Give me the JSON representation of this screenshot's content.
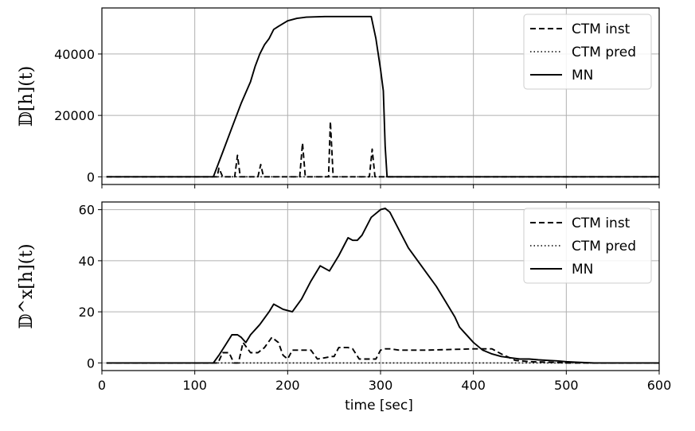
{
  "chart_data": [
    {
      "type": "line",
      "ylabel": "𝔻[h](t)",
      "xlim": [
        0,
        600
      ],
      "ylim": [
        -2500,
        55000
      ],
      "xticks": [
        0,
        100,
        200,
        300,
        400,
        500,
        600
      ],
      "yticks": [
        0,
        20000,
        40000
      ],
      "ytick_labels": [
        "0",
        "20000",
        "40000"
      ],
      "grid": true,
      "legend": {
        "placement": "top-right"
      },
      "series": [
        {
          "name": "CTM inst",
          "style": "dashed",
          "x": [
            5,
            120,
            124,
            126,
            130,
            140,
            143,
            146,
            149,
            152,
            160,
            168,
            171,
            174,
            177,
            180,
            210,
            213,
            216,
            219,
            222,
            240,
            244,
            246,
            249,
            252,
            285,
            288,
            291,
            294,
            297,
            300,
            600
          ],
          "y": [
            0,
            0,
            0,
            2800,
            0,
            0,
            0,
            7000,
            0,
            0,
            0,
            0,
            4000,
            0,
            0,
            0,
            0,
            0,
            11000,
            0,
            0,
            0,
            0,
            18000,
            0,
            0,
            0,
            0,
            9000,
            0,
            0,
            0,
            0
          ]
        },
        {
          "name": "CTM pred",
          "style": "dotted",
          "x": [
            5,
            600
          ],
          "y": [
            0,
            0
          ]
        },
        {
          "name": "MN",
          "style": "solid",
          "x": [
            5,
            117,
            120,
            130,
            140,
            150,
            160,
            165,
            170,
            175,
            180,
            185,
            190,
            200,
            210,
            220,
            240,
            260,
            280,
            290,
            295,
            300,
            303,
            305,
            307,
            600
          ],
          "y": [
            0,
            0,
            0,
            8000,
            16000,
            24000,
            31000,
            36000,
            40000,
            43000,
            45000,
            48000,
            49000,
            50800,
            51600,
            52000,
            52200,
            52200,
            52200,
            52200,
            45000,
            35000,
            28000,
            10000,
            0,
            0
          ]
        }
      ]
    },
    {
      "type": "line",
      "ylabel": "𝔻^x[h](t)",
      "xlabel": "time [sec]",
      "xlim": [
        0,
        600
      ],
      "ylim": [
        -3,
        63
      ],
      "xticks": [
        0,
        100,
        200,
        300,
        400,
        500,
        600
      ],
      "xtick_labels": [
        "0",
        "100",
        "200",
        "300",
        "400",
        "500",
        "600"
      ],
      "yticks": [
        0,
        20,
        40,
        60
      ],
      "ytick_labels": [
        "0",
        "20",
        "40",
        "60"
      ],
      "grid": true,
      "legend": {
        "placement": "top-right"
      },
      "series": [
        {
          "name": "CTM inst",
          "style": "dashed",
          "x": [
            5,
            120,
            125,
            130,
            137,
            142,
            147,
            152,
            160,
            168,
            175,
            183,
            190,
            195,
            200,
            205,
            220,
            225,
            232,
            240,
            248,
            250,
            255,
            260,
            265,
            270,
            277,
            285,
            290,
            295,
            300,
            305,
            310,
            320,
            350,
            400,
            420,
            430,
            445,
            460,
            480,
            500,
            600
          ],
          "y": [
            0,
            0,
            0,
            4,
            4,
            0,
            0,
            8,
            4,
            4,
            6,
            10,
            8,
            3,
            1.5,
            5,
            5,
            5,
            1.5,
            2,
            2.5,
            2.5,
            6,
            6,
            6,
            5.5,
            1.5,
            1.5,
            1.5,
            1.5,
            5,
            5.5,
            5.5,
            5,
            5,
            5.5,
            5.5,
            3.5,
            1,
            0.5,
            0.3,
            0,
            0
          ]
        },
        {
          "name": "CTM pred",
          "style": "dotted",
          "x": [
            5,
            600
          ],
          "y": [
            0,
            0
          ]
        },
        {
          "name": "MN",
          "style": "solid",
          "x": [
            5,
            120,
            126,
            133,
            140,
            146,
            150,
            155,
            160,
            170,
            180,
            185,
            190,
            195,
            205,
            215,
            225,
            235,
            245,
            255,
            265,
            270,
            275,
            280,
            290,
            300,
            305,
            310,
            320,
            330,
            340,
            350,
            360,
            370,
            380,
            385,
            390,
            400,
            410,
            420,
            430,
            440,
            450,
            460,
            470,
            480,
            490,
            500,
            510,
            520,
            530,
            540,
            550,
            600
          ],
          "y": [
            0,
            0,
            3,
            7,
            11,
            11,
            10,
            8,
            11,
            15,
            20,
            23,
            22,
            21,
            20,
            25,
            32,
            38,
            36,
            42,
            49,
            48,
            48,
            50,
            57,
            60,
            60.5,
            59,
            52,
            45,
            40,
            35,
            30,
            24,
            18,
            14,
            12,
            8,
            5,
            3.5,
            2.5,
            2,
            1.5,
            1.5,
            1.2,
            1,
            0.8,
            0.5,
            0.3,
            0.1,
            0,
            0,
            0,
            0
          ]
        }
      ]
    }
  ]
}
